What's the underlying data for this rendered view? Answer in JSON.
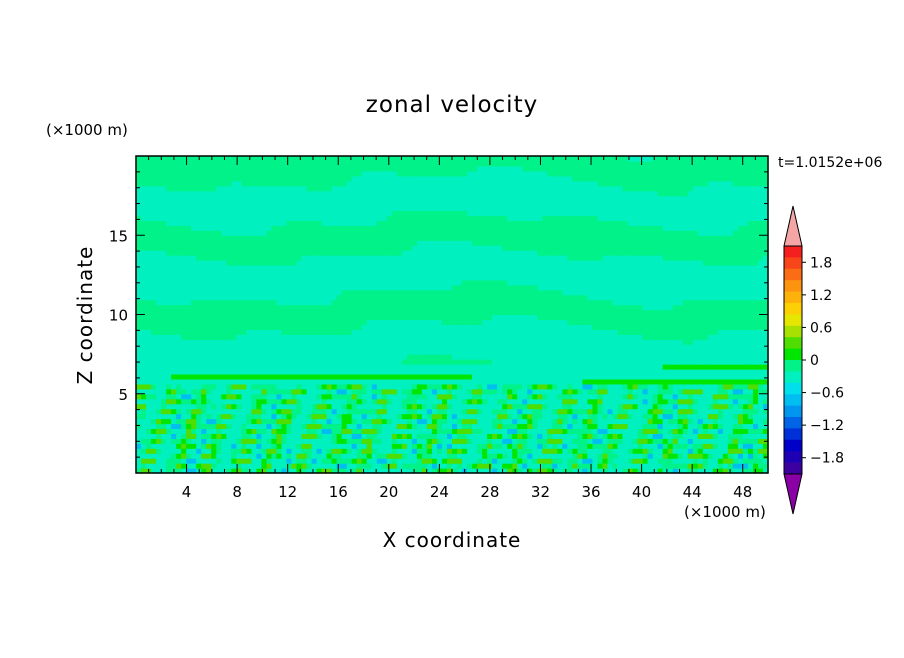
{
  "chart_data": {
    "type": "heatmap",
    "title": "zonal velocity",
    "xlabel": "X coordinate",
    "ylabel": "Z coordinate",
    "x_unit": "(×1000 m)",
    "y_unit": "(×1000 m)",
    "time_label": "t=1.0152e+06",
    "xlim": [
      0,
      50
    ],
    "ylim": [
      0,
      20
    ],
    "x_ticks": [
      4,
      8,
      12,
      16,
      20,
      24,
      28,
      32,
      36,
      40,
      44,
      48
    ],
    "y_ticks": [
      5,
      10,
      15
    ],
    "colorbar": {
      "range": [
        -2.1,
        2.1
      ],
      "step": 0.2,
      "labels": [
        "1.8",
        "1.2",
        "0.6",
        "0",
        "-0.6",
        "-1.2",
        "-1.8"
      ],
      "colors": [
        "#f61f1f",
        "#f8461a",
        "#fa6d15",
        "#fc9410",
        "#fdb10b",
        "#fdd006",
        "#e6e600",
        "#a8e000",
        "#50dd00",
        "#00e600",
        "#00f288",
        "#00f0c0",
        "#00e0ea",
        "#00bef0",
        "#0096f0",
        "#0064e6",
        "#0030d8",
        "#0000c8",
        "#1e00b4",
        "#3c00a0"
      ],
      "over_color": "#f4a6a6",
      "under_color": "#8a00a6"
    },
    "field_bands": [
      {
        "z": [
          0,
          2
        ],
        "dominant": 0.0,
        "pattern": "noisy"
      },
      {
        "z": [
          2,
          5.5
        ],
        "dominant": 0.0,
        "pattern": "wavy"
      },
      {
        "z": [
          5.5,
          7
        ],
        "dominant": -0.2,
        "pattern": "layered"
      },
      {
        "z": [
          7,
          20
        ],
        "dominant": 0.1,
        "pattern": "banded"
      }
    ]
  }
}
